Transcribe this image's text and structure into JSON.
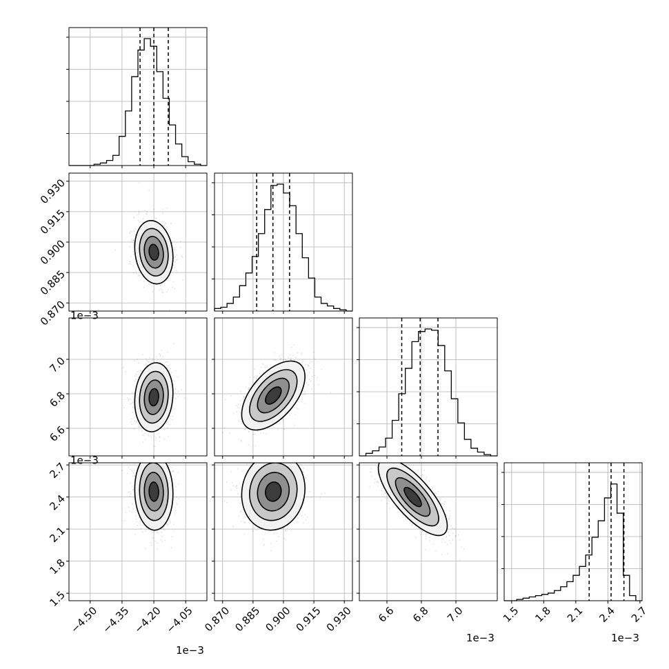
{
  "chart_data": {
    "type": "corner",
    "parameters": [
      {
        "range": [
          -4.6,
          -3.95
        ],
        "ticks": [
          -4.5,
          -4.35,
          -4.2,
          -4.05
        ],
        "tick_labels": [
          "−4.50",
          "−4.35",
          "−4.20",
          "−4.05"
        ],
        "offset": "1e−3",
        "quantiles": [
          -4.265,
          -4.2,
          -4.132
        ]
      },
      {
        "range": [
          0.866,
          0.934
        ],
        "ticks": [
          0.87,
          0.885,
          0.9,
          0.915,
          0.93
        ],
        "tick_labels": [
          "0.870",
          "0.885",
          "0.900",
          "0.915",
          "0.930"
        ],
        "offset": "",
        "quantiles": [
          0.8868,
          0.8948,
          0.903
        ]
      },
      {
        "range": [
          6.44,
          7.24
        ],
        "ticks": [
          6.6,
          6.8,
          7.0
        ],
        "tick_labels": [
          "6.6",
          "6.8",
          "7.0"
        ],
        "offset": "1e−3",
        "quantiles": [
          6.686,
          6.793,
          6.896
        ]
      },
      {
        "range": [
          1.43,
          2.72
        ],
        "ticks": [
          1.5,
          1.8,
          2.1,
          2.4,
          2.7
        ],
        "tick_labels": [
          "1.5",
          "1.8",
          "2.1",
          "2.4",
          "2.7"
        ],
        "offset": "1e−3",
        "quantiles": [
          2.225,
          2.43,
          2.55
        ]
      }
    ],
    "histograms": [
      [
        0.0,
        0.0,
        0.0,
        0.0,
        0.01,
        0.02,
        0.04,
        0.08,
        0.23,
        0.43,
        0.7,
        0.91,
        1.0,
        0.94,
        0.74,
        0.53,
        0.32,
        0.17,
        0.07,
        0.03,
        0.01,
        0.0
      ],
      [
        0.02,
        0.03,
        0.06,
        0.11,
        0.2,
        0.3,
        0.43,
        0.61,
        0.8,
        0.99,
        1.0,
        0.93,
        0.83,
        0.61,
        0.42,
        0.26,
        0.11,
        0.06,
        0.04,
        0.02,
        0.01,
        0.0
      ],
      [
        0.0,
        0.02,
        0.04,
        0.07,
        0.14,
        0.28,
        0.49,
        0.69,
        0.9,
        0.98,
        1.0,
        0.99,
        0.87,
        0.67,
        0.45,
        0.26,
        0.13,
        0.06,
        0.03,
        0.01,
        0.0
      ],
      [
        0.0,
        0.0,
        0.01,
        0.02,
        0.03,
        0.04,
        0.05,
        0.06,
        0.08,
        0.11,
        0.15,
        0.2,
        0.27,
        0.36,
        0.5,
        0.63,
        0.81,
        0.92,
        0.69,
        0.2,
        0.04,
        0.0
      ]
    ],
    "pairs": [
      {
        "x": 0,
        "y": 1,
        "mean": [
          -4.2,
          0.895
        ],
        "std": [
          0.045,
          0.0078
        ],
        "corr": -0.15
      },
      {
        "x": 0,
        "y": 2,
        "mean": [
          -4.2,
          6.78
        ],
        "std": [
          0.045,
          0.1
        ],
        "corr": 0.12
      },
      {
        "x": 1,
        "y": 2,
        "mean": [
          0.895,
          6.79
        ],
        "std": [
          0.0078,
          0.1
        ],
        "corr": 0.55
      },
      {
        "x": 0,
        "y": 3,
        "mean": [
          -4.2,
          2.45
        ],
        "std": [
          0.045,
          0.18
        ],
        "corr": -0.05
      },
      {
        "x": 1,
        "y": 3,
        "mean": [
          0.895,
          2.45
        ],
        "std": [
          0.0078,
          0.18
        ],
        "corr": 0.08
      },
      {
        "x": 2,
        "y": 3,
        "mean": [
          6.75,
          2.4
        ],
        "std": [
          0.1,
          0.18
        ],
        "corr": -0.75
      }
    ],
    "contour_levels_sigma": [
      0.5,
      1.0,
      1.5,
      2.0
    ],
    "grid": true,
    "title": "",
    "xlabel": "",
    "ylabel": ""
  }
}
